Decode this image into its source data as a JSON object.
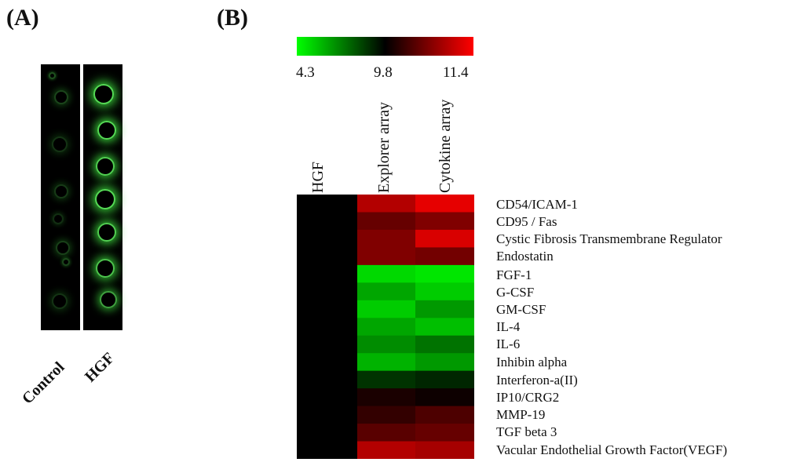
{
  "panels": {
    "a_label": "(A)",
    "b_label": "(B)"
  },
  "blot": {
    "lanes": [
      "Control",
      "HGF"
    ]
  },
  "chart_data": {
    "type": "heatmap",
    "colorscale": {
      "min_color": "#00ff00",
      "mid_color": "#000000",
      "max_color": "#ff0000"
    },
    "colorbar_ticks": [
      "4.3",
      "9.8",
      "11.4"
    ],
    "columns": [
      "HGF",
      "Explorer array",
      "Cytokine array"
    ],
    "rows": [
      "CD54/ICAM-1",
      "CD95 / Fas",
      "Cystic Fibrosis Transmembrane Regulator",
      "Endostatin",
      "FGF-1",
      "G-CSF",
      "GM-CSF",
      "IL-4",
      "IL-6",
      "Inhibin alpha",
      "Interferon-a(II)",
      "IP10/CRG2",
      "MMP-19",
      "TGF beta 3",
      "Vacular Endothelial Growth Factor(VEGF)"
    ],
    "values": [
      [
        0,
        0.7,
        0.9
      ],
      [
        0,
        0.4,
        0.5
      ],
      [
        0,
        0.5,
        0.85
      ],
      [
        0,
        0.5,
        0.45
      ],
      [
        0,
        -0.85,
        -0.9
      ],
      [
        0,
        -0.65,
        -0.8
      ],
      [
        0,
        -0.8,
        -0.6
      ],
      [
        0,
        -0.65,
        -0.75
      ],
      [
        0,
        -0.55,
        -0.45
      ],
      [
        0,
        -0.7,
        -0.6
      ],
      [
        0,
        -0.2,
        -0.15
      ],
      [
        0,
        0.1,
        0.05
      ],
      [
        0,
        0.2,
        0.3
      ],
      [
        0,
        0.35,
        0.4
      ],
      [
        0,
        0.7,
        0.65
      ]
    ]
  }
}
